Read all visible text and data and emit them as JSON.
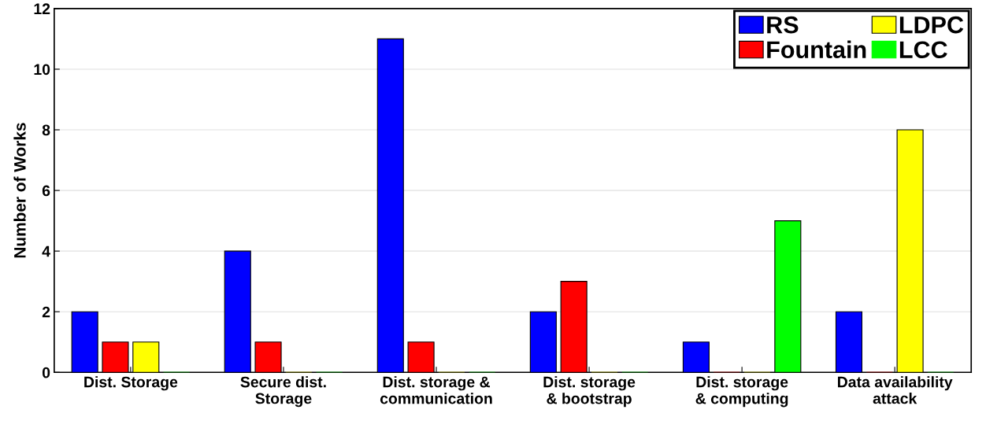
{
  "chart_data": {
    "type": "bar",
    "ylabel": "Number of Works",
    "categories": [
      "Dist. Storage",
      "Secure dist.\nStorage",
      "Dist. storage &\ncommunication",
      "Dist. storage\n& bootstrap",
      "Dist. storage\n& computing",
      "Data availability\nattack"
    ],
    "series": [
      {
        "name": "RS",
        "color": "#0000ff",
        "values": [
          2,
          4,
          11,
          2,
          1,
          2
        ]
      },
      {
        "name": "Fountain",
        "color": "#ff0000",
        "values": [
          1,
          1,
          1,
          3,
          0,
          0
        ]
      },
      {
        "name": "LDPC",
        "color": "#ffff00",
        "values": [
          1,
          0,
          0,
          0,
          0,
          8
        ]
      },
      {
        "name": "LCC",
        "color": "#00ff00",
        "values": [
          0,
          0,
          0,
          0,
          5,
          0
        ]
      }
    ],
    "ylim": [
      0,
      12
    ],
    "yticks": [
      0,
      2,
      4,
      6,
      8,
      10,
      12
    ],
    "grid": "y",
    "legend": "top right"
  }
}
